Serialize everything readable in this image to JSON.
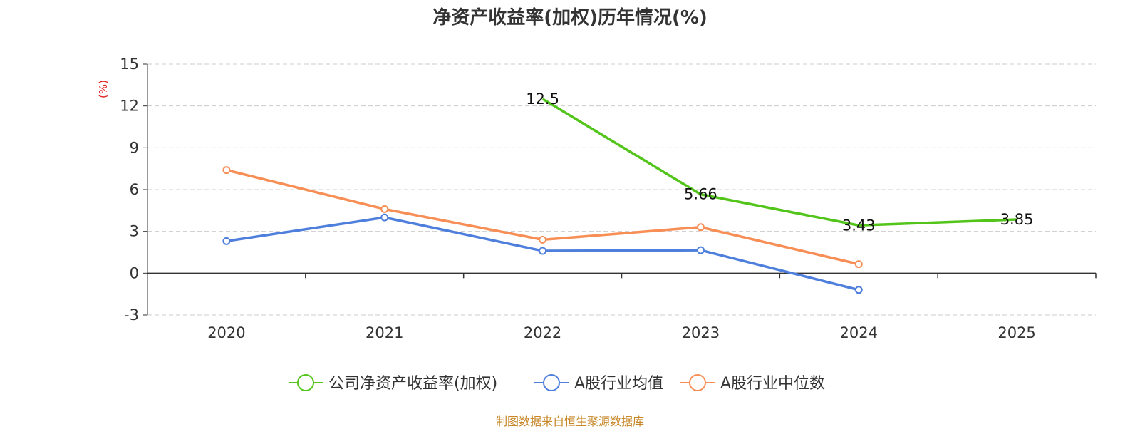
{
  "chart_data": {
    "type": "line",
    "title": "净资产收益率(加权)历年情况(%)",
    "ylabel": "(%)",
    "categories": [
      "2020",
      "2021",
      "2022",
      "2023",
      "2024",
      "2025"
    ],
    "y_ticks": [
      "15",
      "12",
      "9",
      "6",
      "3",
      "0",
      "-3"
    ],
    "ylim": [
      -3,
      15
    ],
    "grid": true,
    "legend_position": "bottom",
    "series": [
      {
        "name": "公司净资产收益率(加权)",
        "color": "#52c41a",
        "values": [
          null,
          null,
          12.5,
          5.66,
          3.43,
          3.85
        ],
        "labels": [
          "",
          "",
          "12.5",
          "5.66",
          "3.43",
          "3.85"
        ],
        "show_markers": false
      },
      {
        "name": "A股行业均值",
        "color": "#4e7fdc",
        "values": [
          2.3,
          4.0,
          1.6,
          1.65,
          -1.2,
          null
        ],
        "show_markers": true
      },
      {
        "name": "A股行业中位数",
        "color": "#f78e55",
        "values": [
          7.4,
          4.6,
          2.4,
          3.3,
          0.65,
          null
        ],
        "show_markers": true
      }
    ]
  },
  "source": "制图数据来自恒生聚源数据库"
}
